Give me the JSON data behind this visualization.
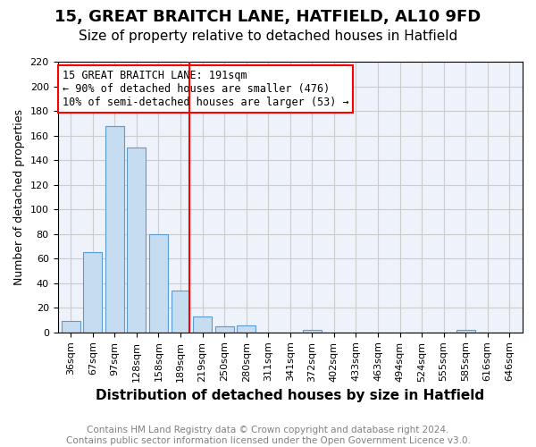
{
  "title1": "15, GREAT BRAITCH LANE, HATFIELD, AL10 9FD",
  "title2": "Size of property relative to detached houses in Hatfield",
  "xlabel": "Distribution of detached houses by size in Hatfield",
  "ylabel": "Number of detached properties",
  "categories": [
    "36sqm",
    "67sqm",
    "97sqm",
    "128sqm",
    "158sqm",
    "189sqm",
    "219sqm",
    "250sqm",
    "280sqm",
    "311sqm",
    "341sqm",
    "372sqm",
    "402sqm",
    "433sqm",
    "463sqm",
    "494sqm",
    "524sqm",
    "555sqm",
    "585sqm",
    "616sqm",
    "646sqm"
  ],
  "bar_heights": [
    9,
    65,
    168,
    150,
    80,
    34,
    13,
    5,
    6,
    0,
    0,
    2,
    0,
    0,
    0,
    0,
    0,
    0,
    2,
    0,
    0
  ],
  "bar_color": "#c6dcf0",
  "bar_edge_color": "#5b9bd5",
  "vline_index": 5,
  "vline_color": "red",
  "annotation_lines": [
    "15 GREAT BRAITCH LANE: 191sqm",
    "← 90% of detached houses are smaller (476)",
    "10% of semi-detached houses are larger (53) →"
  ],
  "annotation_box_color": "red",
  "ylim": [
    0,
    220
  ],
  "yticks": [
    0,
    20,
    40,
    60,
    80,
    100,
    120,
    140,
    160,
    180,
    200,
    220
  ],
  "grid_color": "#cccccc",
  "bg_color": "#eef2fb",
  "footnote": "Contains HM Land Registry data © Crown copyright and database right 2024.\nContains public sector information licensed under the Open Government Licence v3.0.",
  "title1_fontsize": 13,
  "title2_fontsize": 11,
  "xlabel_fontsize": 11,
  "ylabel_fontsize": 9,
  "tick_fontsize": 8,
  "annotation_fontsize": 8.5,
  "footnote_fontsize": 7.5
}
